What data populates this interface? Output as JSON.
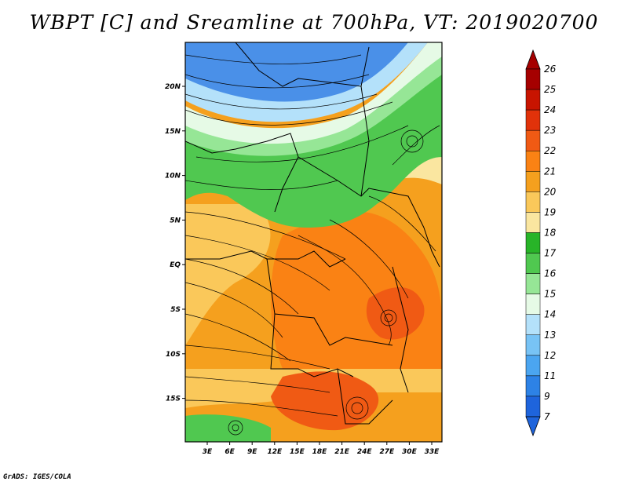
{
  "title": "WBPT [C] and Sreamline at 700hPa, VT: 2019020700",
  "credit": "GrADS: IGES/COLA",
  "map": {
    "lat_ticks": [
      "20N",
      "15N",
      "10N",
      "5N",
      "EQ",
      "5S",
      "10S",
      "15S"
    ],
    "lon_ticks": [
      "3E",
      "6E",
      "9E",
      "12E",
      "15E",
      "18E",
      "21E",
      "24E",
      "27E",
      "30E",
      "33E"
    ]
  },
  "colorbar": {
    "labels": [
      "26",
      "25",
      "24",
      "23",
      "22",
      "21",
      "20",
      "19",
      "18",
      "17",
      "16",
      "15",
      "14",
      "13",
      "12",
      "11",
      "9",
      "7"
    ],
    "colors": [
      "#a50000",
      "#c81400",
      "#e1320a",
      "#f05a14",
      "#fa8214",
      "#f5a01e",
      "#fac85a",
      "#fae6a0",
      "#28b428",
      "#50c850",
      "#96e696",
      "#e6fae6",
      "#b4e1fa",
      "#78c3f5",
      "#4ba5f0",
      "#2d82e6",
      "#1e64dc"
    ],
    "top_arrow_color": "#a50000",
    "bottom_arrow_color": "#1e64dc"
  },
  "zones": {
    "blue_dark": "#4a90e8",
    "blue_light": "#b4e1fa",
    "green_pale": "#e6fae6",
    "green_light": "#96e696",
    "green": "#50c850",
    "yellow": "#fae6a0",
    "orange_light": "#fac85a",
    "orange": "#f5a01e",
    "orange_deep": "#fa8214",
    "red_orange": "#f05a14"
  }
}
